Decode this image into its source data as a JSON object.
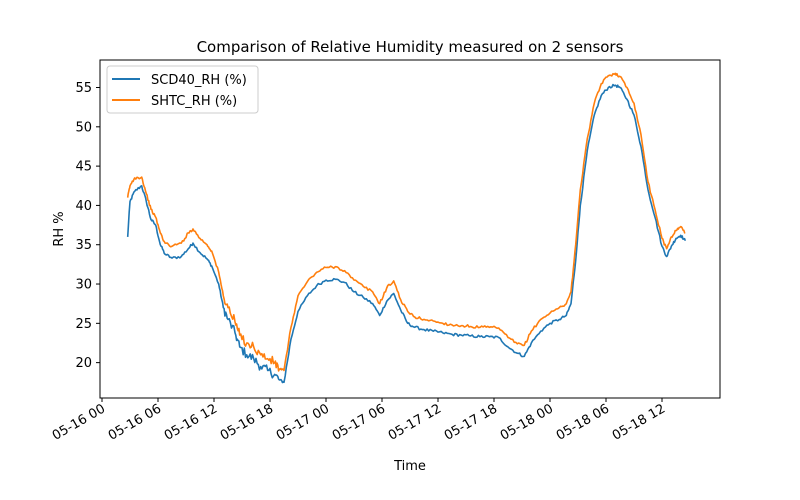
{
  "chart_data": {
    "type": "line",
    "title": "Comparison of Relative Humidity measured on 2 sensors",
    "xlabel": "Time",
    "ylabel": "RH %",
    "xlim": [
      "05-16 00:00",
      "05-18 18:00"
    ],
    "ylim": [
      15.5,
      58.5
    ],
    "yticks": [
      20,
      25,
      30,
      35,
      40,
      45,
      50,
      55
    ],
    "xticks": [
      "05-16 00",
      "05-16 06",
      "05-16 12",
      "05-16 18",
      "05-17 00",
      "05-17 06",
      "05-17 12",
      "05-17 18",
      "05-18 00",
      "05-18 06",
      "05-18 12"
    ],
    "grid": false,
    "legend": "upper-left",
    "series": [
      {
        "name": "SCD40_RH (%)",
        "color": "#1f77b4",
        "x": [
          "05-16 02:45",
          "05-16 03:00",
          "05-16 03:30",
          "05-16 04:15",
          "05-16 04:45",
          "05-16 05:15",
          "05-16 05:45",
          "05-16 06:15",
          "05-16 06:45",
          "05-16 07:30",
          "05-16 08:30",
          "05-16 09:15",
          "05-16 09:45",
          "05-16 10:30",
          "05-16 11:15",
          "05-16 11:45",
          "05-16 12:30",
          "05-16 13:00",
          "05-16 13:30",
          "05-16 14:15",
          "05-16 14:45",
          "05-16 15:30",
          "05-16 16:15",
          "05-16 17:00",
          "05-16 17:45",
          "05-16 18:30",
          "05-16 19:00",
          "05-16 19:30",
          "05-16 20:15",
          "05-16 21:00",
          "05-16 22:00",
          "05-16 23:00",
          "05-17 00:00",
          "05-17 01:00",
          "05-17 02:00",
          "05-17 03:00",
          "05-17 04:00",
          "05-17 05:00",
          "05-17 05:45",
          "05-17 06:30",
          "05-17 07:15",
          "05-17 08:00",
          "05-17 08:45",
          "05-17 09:30",
          "05-17 10:30",
          "05-17 11:30",
          "05-17 12:30",
          "05-17 13:30",
          "05-17 14:30",
          "05-17 15:30",
          "05-17 16:30",
          "05-17 17:30",
          "05-17 18:30",
          "05-17 19:30",
          "05-17 20:30",
          "05-17 21:15",
          "05-17 22:00",
          "05-17 23:00",
          "05-18 00:00",
          "05-18 01:00",
          "05-18 01:45",
          "05-18 02:15",
          "05-18 02:45",
          "05-18 03:15",
          "05-18 04:00",
          "05-18 04:45",
          "05-18 05:30",
          "05-18 06:15",
          "05-18 07:00",
          "05-18 07:30",
          "05-18 08:15",
          "05-18 09:00",
          "05-18 09:45",
          "05-18 10:30",
          "05-18 11:15",
          "05-18 12:00",
          "05-18 12:30",
          "05-18 13:00",
          "05-18 13:30",
          "05-18 14:00",
          "05-18 14:30"
        ],
        "values": [
          36.0,
          40.5,
          41.8,
          42.5,
          40.5,
          38.2,
          37.5,
          35.0,
          33.8,
          33.3,
          33.5,
          34.5,
          35.2,
          34.0,
          33.2,
          32.3,
          30.0,
          27.0,
          25.5,
          23.8,
          22.0,
          21.0,
          20.5,
          19.5,
          19.0,
          18.5,
          17.8,
          17.5,
          23.0,
          26.5,
          28.5,
          29.8,
          30.5,
          30.6,
          30.2,
          29.0,
          28.3,
          27.5,
          26.0,
          27.8,
          28.8,
          26.7,
          25.0,
          24.5,
          24.2,
          24.0,
          23.8,
          23.6,
          23.5,
          23.4,
          23.3,
          23.3,
          23.2,
          22.0,
          21.2,
          20.8,
          22.5,
          24.0,
          25.0,
          25.5,
          26.0,
          27.5,
          33.0,
          40.0,
          47.0,
          51.5,
          54.0,
          55.0,
          55.3,
          55.0,
          53.5,
          51.5,
          47.5,
          42.0,
          38.5,
          34.8,
          33.5,
          34.8,
          35.8,
          36.2,
          35.5
        ]
      },
      {
        "name": "SHTC_RH (%)",
        "color": "#ff7f0e",
        "x": [
          "05-16 02:45",
          "05-16 03:00",
          "05-16 03:30",
          "05-16 04:15",
          "05-16 04:45",
          "05-16 05:15",
          "05-16 05:45",
          "05-16 06:15",
          "05-16 06:45",
          "05-16 07:30",
          "05-16 08:30",
          "05-16 09:15",
          "05-16 09:45",
          "05-16 10:30",
          "05-16 11:15",
          "05-16 11:45",
          "05-16 12:30",
          "05-16 13:00",
          "05-16 13:30",
          "05-16 14:15",
          "05-16 14:45",
          "05-16 15:30",
          "05-16 16:15",
          "05-16 17:00",
          "05-16 17:45",
          "05-16 18:30",
          "05-16 19:00",
          "05-16 19:30",
          "05-16 20:15",
          "05-16 21:00",
          "05-16 22:00",
          "05-16 23:00",
          "05-17 00:00",
          "05-17 01:00",
          "05-17 02:00",
          "05-17 03:00",
          "05-17 04:00",
          "05-17 05:00",
          "05-17 05:45",
          "05-17 06:30",
          "05-17 07:15",
          "05-17 08:00",
          "05-17 08:45",
          "05-17 09:30",
          "05-17 10:30",
          "05-17 11:30",
          "05-17 12:30",
          "05-17 13:30",
          "05-17 14:30",
          "05-17 15:30",
          "05-17 16:30",
          "05-17 17:30",
          "05-17 18:30",
          "05-17 19:30",
          "05-17 20:30",
          "05-17 21:15",
          "05-17 22:00",
          "05-17 23:00",
          "05-18 00:00",
          "05-18 01:00",
          "05-18 01:45",
          "05-18 02:15",
          "05-18 02:45",
          "05-18 03:15",
          "05-18 04:00",
          "05-18 04:45",
          "05-18 05:30",
          "05-18 06:15",
          "05-18 07:00",
          "05-18 07:30",
          "05-18 08:15",
          "05-18 09:00",
          "05-18 09:45",
          "05-18 10:30",
          "05-18 11:15",
          "05-18 12:00",
          "05-18 12:30",
          "05-18 13:00",
          "05-18 13:30",
          "05-18 14:00",
          "05-18 14:30"
        ],
        "values": [
          41.0,
          42.5,
          43.5,
          43.6,
          41.5,
          39.5,
          38.5,
          36.5,
          35.2,
          34.8,
          35.2,
          36.5,
          37.0,
          35.8,
          35.0,
          34.2,
          31.5,
          28.5,
          27.0,
          25.2,
          23.5,
          22.5,
          22.0,
          21.0,
          20.5,
          20.0,
          19.2,
          19.0,
          24.5,
          28.5,
          30.3,
          31.5,
          32.1,
          32.2,
          31.7,
          30.5,
          29.7,
          29.0,
          27.5,
          29.5,
          30.4,
          28.0,
          26.5,
          25.8,
          25.5,
          25.3,
          25.0,
          24.8,
          24.7,
          24.6,
          24.5,
          24.5,
          24.4,
          23.2,
          22.4,
          22.2,
          24.0,
          25.5,
          26.3,
          27.0,
          27.5,
          29.0,
          35.0,
          42.0,
          48.5,
          53.0,
          55.5,
          56.5,
          56.8,
          56.4,
          55.0,
          53.0,
          49.0,
          43.0,
          39.5,
          35.8,
          34.5,
          36.0,
          36.8,
          37.3,
          36.5
        ]
      }
    ]
  }
}
